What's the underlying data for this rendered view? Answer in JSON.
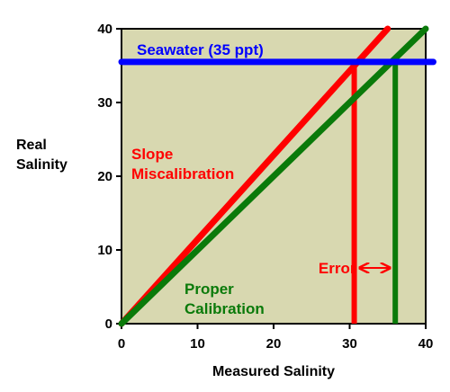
{
  "chart_data": {
    "type": "line",
    "xlabel": "Measured Salinity",
    "ylabel": [
      "Real",
      "Salinity"
    ],
    "xlim": [
      0,
      40
    ],
    "ylim": [
      0,
      40
    ],
    "x_ticks": [
      0,
      10,
      20,
      30,
      40
    ],
    "y_ticks": [
      0,
      10,
      20,
      30,
      40
    ],
    "grid": false,
    "plot_background": "#d8d8b0",
    "series": [
      {
        "name": "Slope Miscalibration",
        "color": "#ff0000",
        "points": [
          [
            0,
            0
          ],
          [
            35,
            40
          ]
        ]
      },
      {
        "name": "Proper Calibration",
        "color": "#0a7a0a",
        "points": [
          [
            0,
            0
          ],
          [
            40,
            40
          ]
        ]
      },
      {
        "name": "Seawater (35 ppt)",
        "color": "#0000ff",
        "points": [
          [
            0,
            35.5
          ],
          [
            41,
            35.5
          ]
        ]
      }
    ],
    "drop_lines": [
      {
        "color": "#ff0000",
        "x": 30.6,
        "y_from": 0,
        "y_to": 35.5
      },
      {
        "color": "#0a7a0a",
        "x": 36,
        "y_from": 0,
        "y_to": 35.5
      }
    ],
    "annotations": {
      "seawater": {
        "text": "Seawater (35 ppt)",
        "color": "#0000ff"
      },
      "slope": {
        "lines": [
          "Slope",
          "Miscalibration"
        ],
        "color": "#ff0000"
      },
      "proper": {
        "lines": [
          "Proper",
          "Calibration"
        ],
        "color": "#0a7a0a"
      },
      "error": {
        "text": "Error",
        "color": "#ff0000",
        "arrow_from": 31.3,
        "arrow_to": 35.3
      }
    }
  }
}
